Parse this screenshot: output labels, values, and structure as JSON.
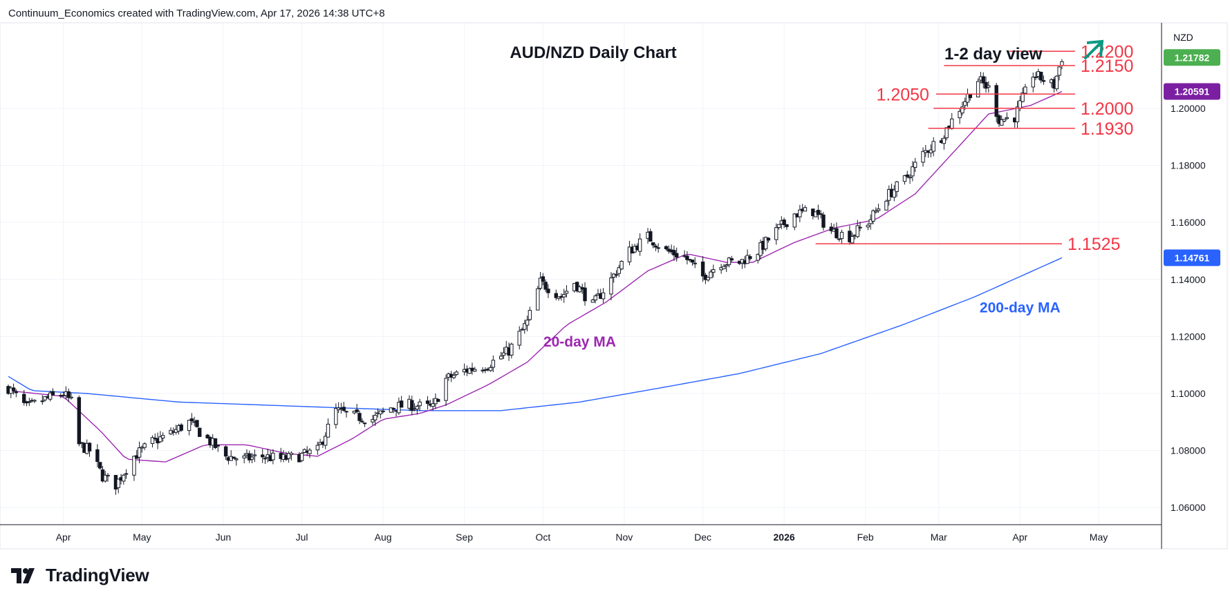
{
  "header": {
    "credit": "Continuum_Economics created with TradingView.com, Apr 17, 2026 14:38 UTC+8"
  },
  "footer": {
    "logo_text": "TradingView"
  },
  "colors": {
    "up_candle": "#ffffff",
    "down_candle": "#131722",
    "level_line": "#f23645",
    "ma20": "#9c27b0",
    "ma200": "#2962ff",
    "arrow": "#089981",
    "badge_last": "#4caf50",
    "badge_ma20": "#7b1fa2",
    "badge_ma200": "#2962ff"
  },
  "chart_data": {
    "type": "candlestick",
    "title": "AUD/NZD Daily Chart",
    "view_label": "1-2 day view",
    "view_direction": "up-arrow-icon",
    "currency": "NZD",
    "y_range": [
      1.054,
      1.23
    ],
    "y_ticks": [
      "1.06000",
      "1.08000",
      "1.10000",
      "1.12000",
      "1.14000",
      "1.16000",
      "1.18000",
      "1.20000"
    ],
    "x_labels": [
      {
        "label": "Apr",
        "date": "2025-04-01",
        "bold": false
      },
      {
        "label": "May",
        "date": "2025-05-01",
        "bold": false
      },
      {
        "label": "Jun",
        "date": "2025-06-01",
        "bold": false
      },
      {
        "label": "Jul",
        "date": "2025-07-01",
        "bold": false
      },
      {
        "label": "Aug",
        "date": "2025-08-01",
        "bold": false
      },
      {
        "label": "Sep",
        "date": "2025-09-01",
        "bold": false
      },
      {
        "label": "Oct",
        "date": "2025-10-01",
        "bold": false
      },
      {
        "label": "Nov",
        "date": "2025-11-01",
        "bold": false
      },
      {
        "label": "Dec",
        "date": "2025-12-01",
        "bold": false
      },
      {
        "label": "2026",
        "date": "2026-01-01",
        "bold": true
      },
      {
        "label": "Feb",
        "date": "2026-02-01",
        "bold": false
      },
      {
        "label": "Mar",
        "date": "2026-03-01",
        "bold": false
      },
      {
        "label": "Apr",
        "date": "2026-04-01",
        "bold": false
      },
      {
        "label": "May",
        "date": "2026-05-01",
        "bold": false
      }
    ],
    "x_range": [
      "2025-03-11",
      "2026-05-25"
    ],
    "price_path": [
      [
        "2025-03-11",
        1.102
      ],
      [
        "2025-03-18",
        1.095
      ],
      [
        "2025-03-25",
        1.098
      ],
      [
        "2025-04-01",
        1.1
      ],
      [
        "2025-04-04",
        1.097
      ],
      [
        "2025-04-07",
        1.082
      ],
      [
        "2025-04-11",
        1.08
      ],
      [
        "2025-04-16",
        1.071
      ],
      [
        "2025-04-21",
        1.068
      ],
      [
        "2025-04-28",
        1.078
      ],
      [
        "2025-05-05",
        1.083
      ],
      [
        "2025-05-12",
        1.086
      ],
      [
        "2025-05-19",
        1.09
      ],
      [
        "2025-05-26",
        1.084
      ],
      [
        "2025-06-02",
        1.078
      ],
      [
        "2025-06-09",
        1.077
      ],
      [
        "2025-06-16",
        1.078
      ],
      [
        "2025-06-23",
        1.077
      ],
      [
        "2025-06-30",
        1.078
      ],
      [
        "2025-07-07",
        1.08
      ],
      [
        "2025-07-14",
        1.094
      ],
      [
        "2025-07-21",
        1.092
      ],
      [
        "2025-07-28",
        1.091
      ],
      [
        "2025-08-04",
        1.095
      ],
      [
        "2025-08-11",
        1.096
      ],
      [
        "2025-08-20",
        1.095
      ],
      [
        "2025-08-25",
        1.105
      ],
      [
        "2025-09-01",
        1.108
      ],
      [
        "2025-09-10",
        1.11
      ],
      [
        "2025-09-18",
        1.115
      ],
      [
        "2025-09-25",
        1.125
      ],
      [
        "2025-09-30",
        1.139
      ],
      [
        "2025-10-08",
        1.134
      ],
      [
        "2025-10-13",
        1.139
      ],
      [
        "2025-10-20",
        1.131
      ],
      [
        "2025-10-27",
        1.14
      ],
      [
        "2025-11-03",
        1.15
      ],
      [
        "2025-11-10",
        1.155
      ],
      [
        "2025-11-17",
        1.15
      ],
      [
        "2025-11-24",
        1.148
      ],
      [
        "2025-12-01",
        1.141
      ],
      [
        "2025-12-08",
        1.146
      ],
      [
        "2025-12-15",
        1.146
      ],
      [
        "2025-12-22",
        1.15
      ],
      [
        "2025-12-29",
        1.157
      ],
      [
        "2026-01-05",
        1.163
      ],
      [
        "2026-01-12",
        1.164
      ],
      [
        "2026-01-19",
        1.157
      ],
      [
        "2026-01-26",
        1.155
      ],
      [
        "2026-02-02",
        1.16
      ],
      [
        "2026-02-09",
        1.169
      ],
      [
        "2026-02-16",
        1.175
      ],
      [
        "2026-02-23",
        1.184
      ],
      [
        "2026-03-02",
        1.19
      ],
      [
        "2026-03-09",
        1.2
      ],
      [
        "2026-03-16",
        1.21
      ],
      [
        "2026-03-20",
        1.207
      ],
      [
        "2026-03-24",
        1.196
      ],
      [
        "2026-03-30",
        1.197
      ],
      [
        "2026-04-06",
        1.212
      ],
      [
        "2026-04-10",
        1.21
      ],
      [
        "2026-04-14",
        1.208
      ],
      [
        "2026-04-17",
        1.2178
      ]
    ],
    "ma20_path": [
      [
        "2025-03-11",
        1.101
      ],
      [
        "2025-04-01",
        1.099
      ],
      [
        "2025-04-15",
        1.087
      ],
      [
        "2025-04-25",
        1.077
      ],
      [
        "2025-05-10",
        1.076
      ],
      [
        "2025-05-25",
        1.082
      ],
      [
        "2025-06-10",
        1.082
      ],
      [
        "2025-06-25",
        1.079
      ],
      [
        "2025-07-07",
        1.078
      ],
      [
        "2025-07-20",
        1.084
      ],
      [
        "2025-08-01",
        1.091
      ],
      [
        "2025-08-15",
        1.093
      ],
      [
        "2025-08-25",
        1.096
      ],
      [
        "2025-09-10",
        1.103
      ],
      [
        "2025-09-25",
        1.111
      ],
      [
        "2025-10-10",
        1.124
      ],
      [
        "2025-10-25",
        1.132
      ],
      [
        "2025-11-10",
        1.143
      ],
      [
        "2025-11-25",
        1.149
      ],
      [
        "2025-12-10",
        1.146
      ],
      [
        "2025-12-20",
        1.146
      ],
      [
        "2026-01-05",
        1.153
      ],
      [
        "2026-01-20",
        1.158
      ],
      [
        "2026-02-05",
        1.161
      ],
      [
        "2026-02-20",
        1.17
      ],
      [
        "2026-03-05",
        1.183
      ],
      [
        "2026-03-20",
        1.198
      ],
      [
        "2026-04-05",
        1.201
      ],
      [
        "2026-04-17",
        1.2059
      ]
    ],
    "ma200_path": [
      [
        "2025-03-11",
        1.106
      ],
      [
        "2025-03-20",
        1.101
      ],
      [
        "2025-04-10",
        1.1
      ],
      [
        "2025-05-15",
        1.097
      ],
      [
        "2025-06-15",
        1.096
      ],
      [
        "2025-07-15",
        1.095
      ],
      [
        "2025-08-15",
        1.094
      ],
      [
        "2025-09-15",
        1.094
      ],
      [
        "2025-10-15",
        1.097
      ],
      [
        "2025-11-15",
        1.102
      ],
      [
        "2025-12-15",
        1.107
      ],
      [
        "2026-01-15",
        1.114
      ],
      [
        "2026-02-15",
        1.124
      ],
      [
        "2026-03-15",
        1.134
      ],
      [
        "2026-04-17",
        1.1476
      ]
    ],
    "levels": [
      {
        "value": 1.22,
        "label": "1.2200",
        "from": "2026-03-28",
        "to": "2026-04-22",
        "label_side": "right"
      },
      {
        "value": 1.215,
        "label": "1.2150",
        "from": "2026-03-03",
        "to": "2026-04-22",
        "label_side": "right"
      },
      {
        "value": 1.205,
        "label": "1.2050",
        "from": "2026-02-28",
        "to": "2026-04-22",
        "label_side": "left"
      },
      {
        "value": 1.2,
        "label": "1.2000",
        "from": "2026-02-27",
        "to": "2026-04-22",
        "label_side": "right"
      },
      {
        "value": 1.193,
        "label": "1.1930",
        "from": "2026-02-25",
        "to": "2026-04-22",
        "label_side": "right"
      },
      {
        "value": 1.1525,
        "label": "1.1525",
        "from": "2026-01-13",
        "to": "2026-04-17",
        "label_side": "right"
      }
    ],
    "annotations": {
      "ma20_label": {
        "text": "20-day MA",
        "date": "2025-10-15",
        "value": 1.1165
      },
      "ma200_label": {
        "text": "200-day MA",
        "date": "2026-04-01",
        "value": 1.1285
      }
    },
    "price_badges": [
      {
        "value": 1.21782,
        "label": "1.21782",
        "color_key": "badge_last"
      },
      {
        "value": 1.20591,
        "label": "1.20591",
        "color_key": "badge_ma20"
      },
      {
        "value": 1.14761,
        "label": "1.14761",
        "color_key": "badge_ma200"
      }
    ]
  }
}
